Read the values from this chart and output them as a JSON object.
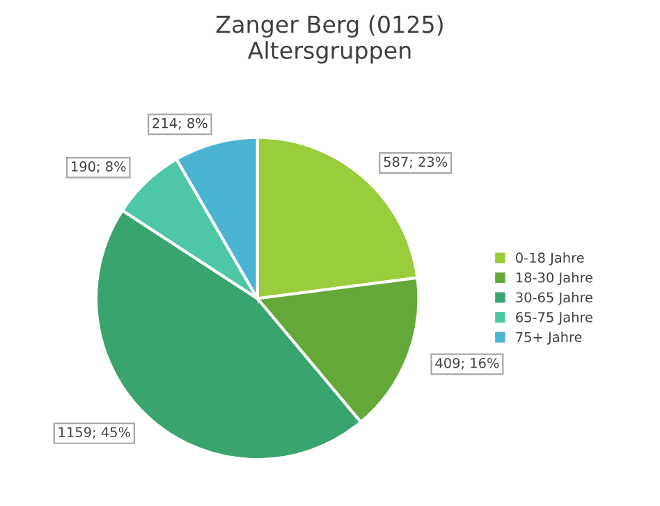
{
  "chart_data": {
    "type": "pie",
    "title": "Zanger Berg (0125)\nAltersgruppen",
    "categories": [
      "0-18 Jahre",
      "18-30 Jahre",
      "30-65 Jahre",
      "65-75 Jahre",
      "75+ Jahre"
    ],
    "values": [
      587,
      409,
      1159,
      190,
      214
    ],
    "colors": [
      "#9acd3c",
      "#65a83a",
      "#3aa46e",
      "#4ec7a6",
      "#4bb4d2"
    ],
    "value_labels": [
      "587; 23%",
      "409; 16%",
      "1159; 45%",
      "190; 8%",
      "214; 8%"
    ],
    "legend": "right"
  }
}
